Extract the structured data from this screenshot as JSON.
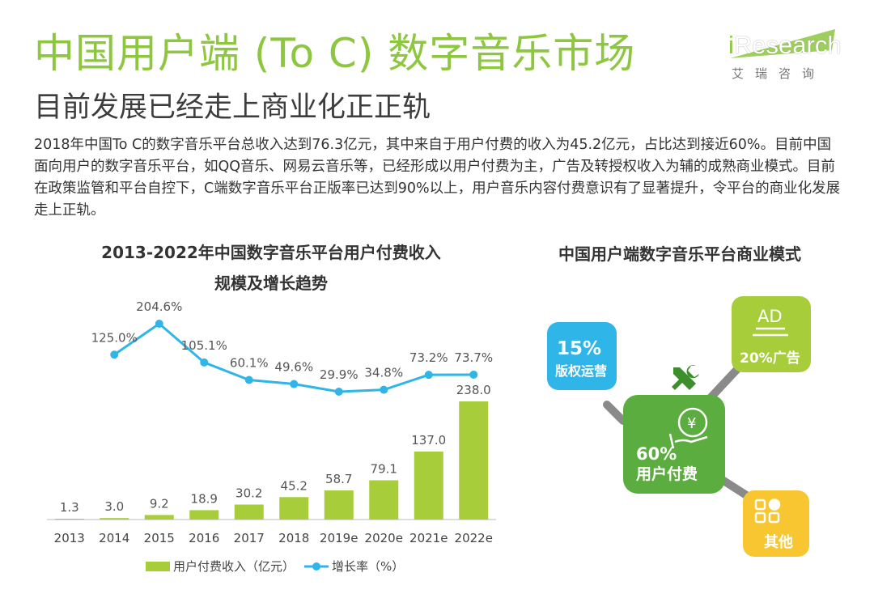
{
  "header": {
    "title": "中国用户端 (To C) 数字音乐市场",
    "subtitle": "目前发展已经走上商业化正正轨",
    "description": "2018年中国To C的数字音乐平台总收入达到76.3亿元，其中来自于用户付费的收入为45.2亿元，占比达到接近60%。目前中国面向用户的数字音乐平台，如QQ音乐、网易云音乐等，已经形成以用户付费为主，广告及转授权收入为辅的成熟商业模式。目前在政策监管和平台自控下，C端数字音乐平台正版率已达到90%以上，用户音乐内容付费意识有了显著提升，令平台的商业化发展走上正轨。"
  },
  "logo": {
    "text_i": "i",
    "text_rest": "Research",
    "cn": "艾瑞咨询",
    "accent": "#8dc63f"
  },
  "chart_data": {
    "type": "bar",
    "title_line1": "2013-2022年中国数字音乐平台用户付费收入",
    "title_line2": "规模及增长趋势",
    "categories": [
      "2013",
      "2014",
      "2015",
      "2016",
      "2017",
      "2018",
      "2019e",
      "2020e",
      "2021e",
      "2022e"
    ],
    "series": [
      {
        "name": "用户付费收入（亿元）",
        "type": "bar",
        "color": "#a8cd3a",
        "values": [
          1.3,
          3.0,
          9.2,
          18.9,
          30.2,
          45.2,
          58.7,
          79.1,
          137.0,
          238.0
        ],
        "labels": [
          "1.3",
          "3.0",
          "9.2",
          "18.9",
          "30.2",
          "45.2",
          "58.7",
          "79.1",
          "137.0",
          "238.0"
        ]
      },
      {
        "name": "增长率（%）",
        "type": "line",
        "color": "#2fb5e8",
        "values": [
          null,
          125.0,
          204.6,
          105.1,
          60.1,
          49.6,
          29.9,
          34.8,
          73.2,
          73.7
        ],
        "labels": [
          "",
          "125.0%",
          "204.6%",
          "105.1%",
          "60.1%",
          "49.6%",
          "29.9%",
          "34.8%",
          "73.2%",
          "73.7%"
        ]
      }
    ],
    "bar_ylim": [
      0,
      238
    ],
    "legend_position": "bottom",
    "grid": false
  },
  "business_model": {
    "title": "中国用户端数字音乐平台商业模式",
    "center": {
      "percent": "60%",
      "label": "用户付费",
      "color": "#5aad3e",
      "icon": "yen-hand-icon"
    },
    "nodes": [
      {
        "percent": "15%",
        "label": "版权运营",
        "color": "#2fb5e8"
      },
      {
        "icon_text": "AD",
        "percent_label": "20%广告",
        "color": "#a8cd3a"
      },
      {
        "label": "其他",
        "color": "#f7c631",
        "icon": "grid-icon"
      }
    ],
    "hub_icon": "wrench-icon",
    "hub_color": "#3d8f2c",
    "connector_color": "#8a8a8a"
  }
}
